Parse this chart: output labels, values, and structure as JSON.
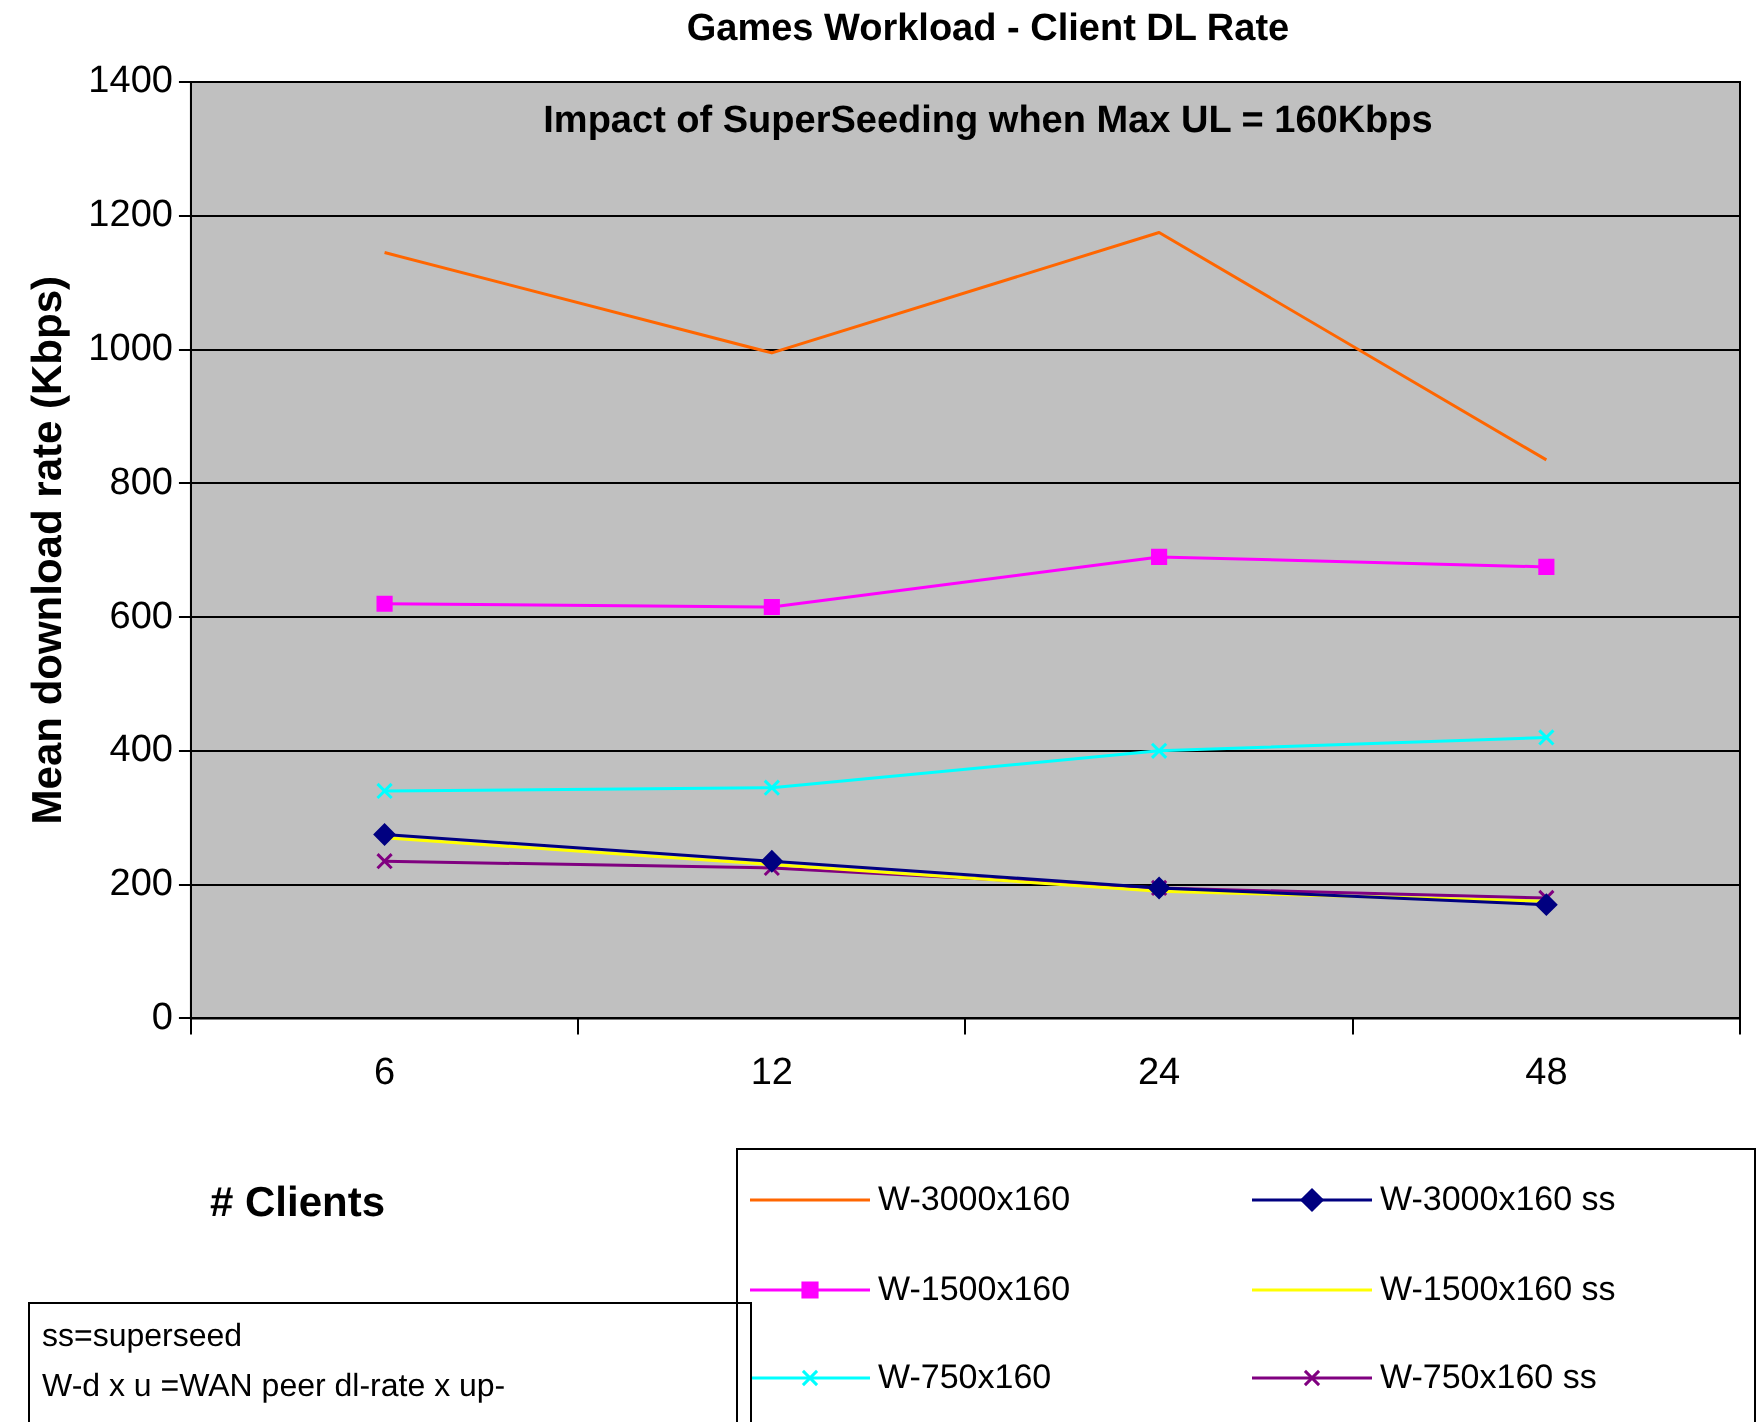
{
  "chart_data": {
    "type": "line",
    "title": "Games Workload - Client DL Rate",
    "subtitle": "Impact of SuperSeeding when Max UL = 160Kbps",
    "xlabel": "# Clients",
    "ylabel": "Mean download rate (Kbps)",
    "categories": [
      "6",
      "12",
      "24",
      "48"
    ],
    "series": [
      {
        "name": "W-3000x160",
        "color": "#ff6600",
        "marker": "none",
        "values": [
          1145,
          995,
          1175,
          835
        ]
      },
      {
        "name": "W-3000x160 ss",
        "color": "#000080",
        "marker": "diamond",
        "values": [
          275,
          235,
          195,
          170
        ]
      },
      {
        "name": "W-1500x160",
        "color": "#ff00ff",
        "marker": "square",
        "values": [
          620,
          615,
          690,
          675
        ]
      },
      {
        "name": "W-1500x160 ss",
        "color": "#ffff00",
        "marker": "none",
        "values": [
          270,
          230,
          190,
          175
        ]
      },
      {
        "name": "W-750x160",
        "color": "#00ffff",
        "marker": "cross",
        "values": [
          340,
          345,
          400,
          420
        ]
      },
      {
        "name": "W-750x160 ss",
        "color": "#800080",
        "marker": "cross",
        "values": [
          235,
          225,
          195,
          180
        ]
      }
    ],
    "ylim": [
      0,
      1400
    ],
    "yticks": [
      0,
      200,
      400,
      600,
      800,
      1000,
      1200,
      1400
    ],
    "grid": "y",
    "legend": "bottom right",
    "annotations": [
      "ss=superseed",
      "W-d x u =WAN peer dl-rate x up-"
    ]
  }
}
